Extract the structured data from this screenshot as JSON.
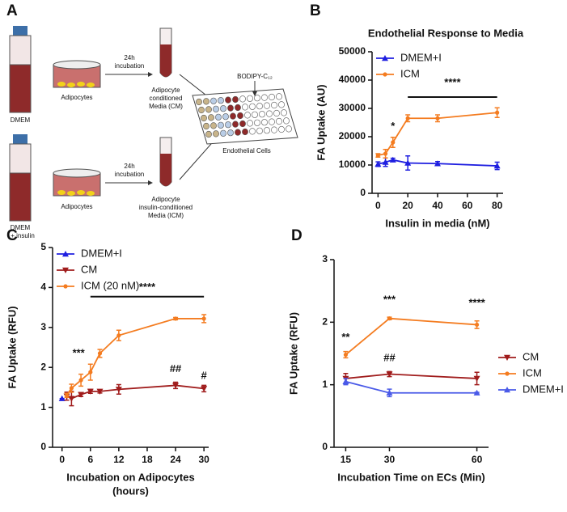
{
  "diagram": {
    "label": "A",
    "row1": {
      "medium": [
        "DMEM"
      ],
      "cells": "Adipocytes",
      "incubation": [
        "24h",
        "incubation"
      ],
      "media": [
        "Adipocyte",
        "conditioned",
        "Media (CM)"
      ]
    },
    "row2": {
      "medium": [
        "DMEM",
        "+ insulin"
      ],
      "cells": "Adipocytes",
      "incubation": [
        "24h",
        "incubation"
      ],
      "media": [
        "Adipocyte",
        "insulin-conditioned",
        "Media (ICM)"
      ]
    },
    "reagent": "BODIPY-C₁₂",
    "target": "Endothelial Cells"
  },
  "chart_data": [
    {
      "label": "B",
      "type": "line",
      "title": "Endothelial Response to Media",
      "x_label": [
        "Insulin in media (nM)"
      ],
      "y_label": "FA  Uptake (AU)",
      "xlim": [
        -4,
        84
      ],
      "xticks": [
        0,
        20,
        40,
        60,
        80
      ],
      "ylim": [
        0,
        50000
      ],
      "yticks": [
        0,
        10000,
        20000,
        30000,
        40000,
        50000
      ],
      "legend": "upper-left",
      "series": [
        {
          "name": "DMEM+I",
          "color": "#1f1fe0",
          "marker": "triangle-up",
          "x": [
            0,
            5,
            10,
            20,
            40,
            80
          ],
          "values": [
            10300,
            11000,
            11800,
            10700,
            10500,
            9700
          ],
          "errors": [
            800,
            1500,
            600,
            2500,
            700,
            1300
          ]
        },
        {
          "name": "ICM",
          "color": "#f47c20",
          "marker": "circle",
          "x": [
            0,
            5,
            10,
            20,
            40,
            80
          ],
          "values": [
            13400,
            14000,
            18000,
            26500,
            26500,
            28500
          ],
          "errors": [
            600,
            1500,
            1800,
            1200,
            1200,
            1700
          ]
        }
      ],
      "annotations": [
        {
          "text": "*",
          "x": 10,
          "y": 23500
        },
        {
          "text": "****",
          "x": 50,
          "y": 39000
        }
      ],
      "bars": [
        {
          "x": [
            20,
            80
          ],
          "y": 34000
        }
      ]
    },
    {
      "label": "C",
      "type": "line",
      "x_label": [
        "Incubation on Adipocytes",
        "(hours)"
      ],
      "y_label": "FA  Uptake (RFU)",
      "xlim": [
        -2,
        31
      ],
      "xticks": [
        0,
        6,
        12,
        18,
        24,
        30
      ],
      "ylim": [
        0,
        5
      ],
      "yticks": [
        0,
        1,
        2,
        3,
        4,
        5
      ],
      "legend": "upper-left",
      "series": [
        {
          "name": "DMEM+I",
          "color": "#1f1fe0",
          "marker": "triangle-up",
          "x": [
            0
          ],
          "values": [
            1.22
          ],
          "errors": [
            0
          ]
        },
        {
          "name": "CM",
          "color": "#a01c1c",
          "marker": "triangle-down",
          "x": [
            1,
            2,
            4,
            6,
            8,
            12,
            24,
            30
          ],
          "values": [
            1.28,
            1.22,
            1.32,
            1.4,
            1.4,
            1.45,
            1.55,
            1.47
          ],
          "errors": [
            0.1,
            0.18,
            0.05,
            0.05,
            0.04,
            0.12,
            0.08,
            0.08
          ]
        },
        {
          "name": "ICM (20 nM)",
          "color": "#f47c20",
          "marker": "circle",
          "x": [
            1,
            2,
            4,
            6,
            8,
            12,
            24,
            30
          ],
          "values": [
            1.3,
            1.48,
            1.68,
            1.88,
            2.35,
            2.8,
            3.22,
            3.22
          ],
          "errors": [
            0.05,
            0.1,
            0.15,
            0.2,
            0.1,
            0.13,
            0.03,
            0.1
          ]
        }
      ],
      "annotations": [
        {
          "text": "***",
          "x": 3.5,
          "y": 2.35
        },
        {
          "text": "****",
          "x": 18,
          "y": 4.0
        },
        {
          "text": "##",
          "x": 24,
          "y": 1.95
        },
        {
          "text": "#",
          "x": 30,
          "y": 1.78
        }
      ],
      "bars": [
        {
          "x": [
            6,
            30
          ],
          "y": 3.77
        }
      ]
    },
    {
      "label": "D",
      "type": "line",
      "x_label": [
        "Incubation Time on ECs (Min)"
      ],
      "y_label": "FA  Uptake (RFU)",
      "xlim": [
        11,
        64
      ],
      "xticks": [
        15,
        30,
        60
      ],
      "ylim": [
        0,
        3
      ],
      "yticks": [
        0,
        1,
        2,
        3
      ],
      "legend": "right",
      "series": [
        {
          "name": "CM",
          "color": "#a01c1c",
          "marker": "triangle-down",
          "x": [
            15,
            30,
            60
          ],
          "values": [
            1.1,
            1.17,
            1.1
          ],
          "errors": [
            0.08,
            0.04,
            0.1
          ]
        },
        {
          "name": "ICM",
          "color": "#f47c20",
          "marker": "circle",
          "x": [
            15,
            30,
            60
          ],
          "values": [
            1.48,
            2.06,
            1.96
          ],
          "errors": [
            0.05,
            0.02,
            0.06
          ]
        },
        {
          "name": "DMEM+I",
          "color": "#4a5ae8",
          "marker": "triangle-up",
          "x": [
            15,
            30,
            60
          ],
          "values": [
            1.05,
            0.87,
            0.87
          ],
          "errors": [
            0.05,
            0.06,
            0.01
          ]
        }
      ],
      "annotations": [
        {
          "text": "**",
          "x": 15,
          "y": 1.75
        },
        {
          "text": "***",
          "x": 30,
          "y": 2.35
        },
        {
          "text": "****",
          "x": 60,
          "y": 2.3
        },
        {
          "text": "##",
          "x": 30,
          "y": 1.42
        }
      ],
      "bars": []
    }
  ]
}
